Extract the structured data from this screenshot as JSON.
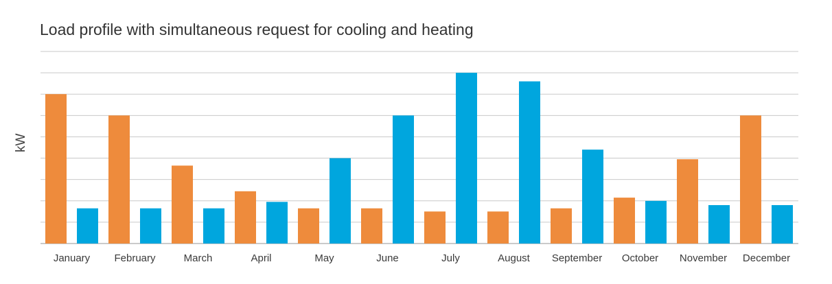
{
  "chart_data": {
    "type": "bar",
    "title": "Load profile with simultaneous request for cooling and heating",
    "ylabel": "kW",
    "xlabel": "",
    "categories": [
      "January",
      "February",
      "March",
      "April",
      "May",
      "June",
      "July",
      "August",
      "September",
      "October",
      "November",
      "December"
    ],
    "series": [
      {
        "color": "#ee8b3c",
        "values": [
          7.0,
          6.0,
          3.65,
          2.45,
          1.65,
          1.65,
          1.5,
          1.5,
          1.65,
          2.15,
          3.95,
          6.0
        ]
      },
      {
        "color": "#00a6de",
        "values": [
          1.65,
          1.65,
          1.65,
          1.95,
          4.0,
          6.0,
          8.0,
          7.6,
          4.4,
          2.0,
          1.8,
          1.8
        ]
      }
    ],
    "ylim": [
      0,
      9
    ],
    "grid": true,
    "legend": "none"
  }
}
